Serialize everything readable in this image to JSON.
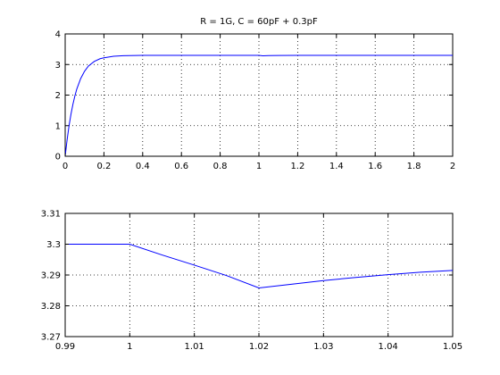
{
  "chart_data": [
    {
      "type": "line",
      "title": "R = 1G, C = 60pF + 0.3pF",
      "xlabel": "",
      "ylabel": "",
      "xlim": [
        0,
        2
      ],
      "ylim": [
        0,
        4
      ],
      "xticks": [
        0,
        0.2,
        0.4,
        0.6,
        0.8,
        1,
        1.2,
        1.4,
        1.6,
        1.8,
        2
      ],
      "xtick_labels": [
        "0",
        "0.2",
        "0.4",
        "0.6",
        "0.8",
        "1",
        "1.2",
        "1.4",
        "1.6",
        "1.8",
        "2"
      ],
      "yticks": [
        0,
        1,
        2,
        3,
        4
      ],
      "ytick_labels": [
        "0",
        "1",
        "2",
        "3",
        "4"
      ],
      "grid": true,
      "series": [
        {
          "color": "#0000ff",
          "x": [
            0,
            0.01,
            0.02,
            0.03,
            0.04,
            0.05,
            0.06,
            0.08,
            0.1,
            0.12,
            0.15,
            0.18,
            0.2,
            0.25,
            0.3,
            0.4,
            0.5,
            1.0,
            1.02,
            1.05,
            1.1,
            1.2,
            1.4,
            1.6,
            1.8,
            2.0
          ],
          "y": [
            0,
            0.54,
            1.0,
            1.38,
            1.7,
            1.97,
            2.2,
            2.54,
            2.78,
            2.95,
            3.1,
            3.19,
            3.22,
            3.27,
            3.29,
            3.298,
            3.3,
            3.3,
            3.286,
            3.292,
            3.296,
            3.299,
            3.3,
            3.3,
            3.3,
            3.3
          ]
        }
      ]
    },
    {
      "type": "line",
      "title": "",
      "xlabel": "",
      "ylabel": "",
      "xlim": [
        0.99,
        1.05
      ],
      "ylim": [
        3.27,
        3.31
      ],
      "xticks": [
        0.99,
        1,
        1.01,
        1.02,
        1.03,
        1.04,
        1.05
      ],
      "xtick_labels": [
        "0.99",
        "1",
        "1.01",
        "1.02",
        "1.03",
        "1.04",
        "1.05"
      ],
      "yticks": [
        3.27,
        3.28,
        3.29,
        3.3,
        3.31
      ],
      "ytick_labels": [
        "3.27",
        "3.28",
        "3.29",
        "3.3",
        "3.31"
      ],
      "grid": true,
      "series": [
        {
          "color": "#0000ff",
          "x": [
            0.99,
            1.0,
            1.005,
            1.01,
            1.015,
            1.02,
            1.025,
            1.03,
            1.035,
            1.04,
            1.045,
            1.05
          ],
          "y": [
            3.3,
            3.3,
            3.2965,
            3.2932,
            3.2898,
            3.2858,
            3.287,
            3.2882,
            3.2892,
            3.2901,
            3.2909,
            3.2915
          ]
        }
      ]
    }
  ]
}
